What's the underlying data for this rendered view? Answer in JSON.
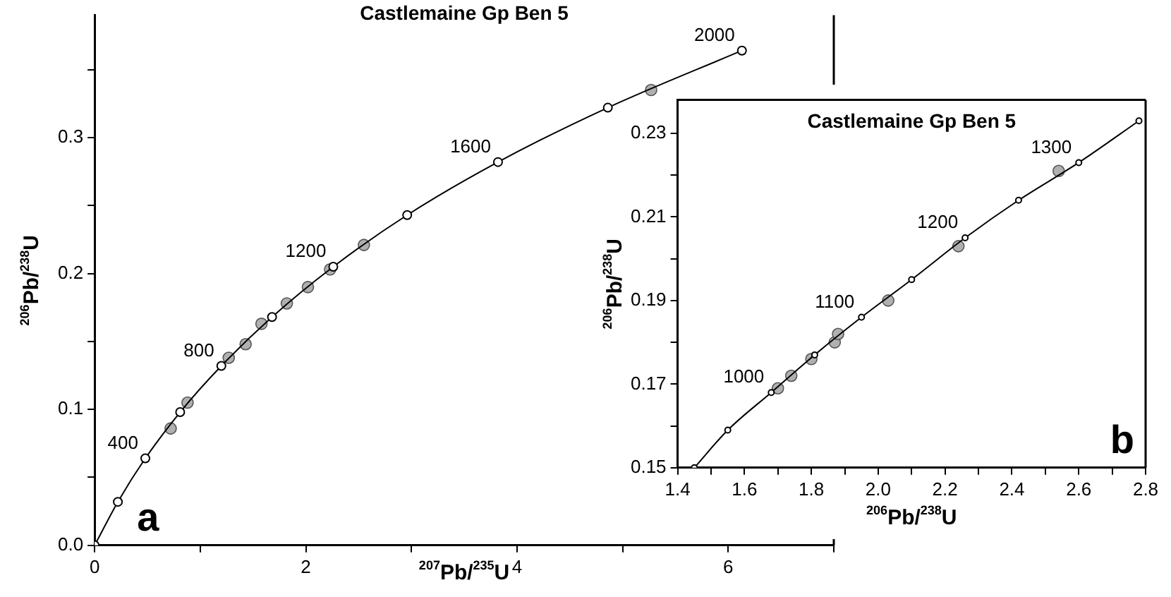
{
  "chart_data": [
    {
      "type": "scatter",
      "title": "Castlemaine Gp Ben 5",
      "xlabel": "$^{207}$Pb/$^{235}$U",
      "ylabel": "$^{206}$Pb/$^{238}$U",
      "xlim": [
        0,
        7
      ],
      "xticks": [
        0,
        {
          "value": 1,
          "label": null
        },
        2,
        {
          "value": 3,
          "label": null
        },
        4,
        {
          "value": 5,
          "label": null
        },
        6,
        {
          "value": 7,
          "label": null
        }
      ],
      "ylim": [
        0,
        0.39
      ],
      "yticks": [
        {
          "value": 0,
          "label": "0.0"
        },
        {
          "value": 0.05,
          "label": null
        },
        0.1,
        {
          "value": 0.15,
          "label": null
        },
        0.2,
        {
          "value": 0.25,
          "label": null
        },
        0.3,
        {
          "value": 0.35,
          "label": null
        }
      ],
      "series": [
        {
          "type": "line",
          "color": "#000000",
          "marker": "circle",
          "x": [
            0,
            0.22,
            0.48,
            0.81,
            1.2,
            1.68,
            2.26,
            2.96,
            3.82,
            4.86,
            6.13
          ],
          "values": [
            0,
            0.032,
            0.064,
            0.098,
            0.132,
            0.168,
            0.205,
            0.243,
            0.282,
            0.322,
            0.364
          ]
        },
        {
          "type": "scatter",
          "color": "#b0b0b0",
          "marker": "circle",
          "x": [
            0.72,
            0.88,
            1.27,
            1.43,
            1.58,
            1.82,
            2.02,
            2.23,
            2.55,
            5.27
          ],
          "values": [
            0.086,
            0.105,
            0.138,
            0.148,
            0.163,
            0.178,
            0.19,
            0.203,
            0.221,
            0.335
          ]
        }
      ],
      "annotations": [
        {
          "text": "400",
          "x": 0.48,
          "y": 0.064
        },
        {
          "text": "800",
          "x": 1.2,
          "y": 0.132
        },
        {
          "text": "1200",
          "x": 2.26,
          "y": 0.205
        },
        {
          "text": "1600",
          "x": 3.82,
          "y": 0.282
        },
        {
          "text": "2000",
          "x": 6.13,
          "y": 0.364
        },
        "a"
      ]
    },
    {
      "type": "scatter",
      "title": "Castlemaine Gp Ben 5",
      "xlabel": "$^{206}$Pb/$^{238}$U",
      "ylabel": "$^{206}$Pb/$^{238}$U",
      "xlim": [
        1.4,
        2.8
      ],
      "xticks": [
        1.4,
        {
          "value": 1.5,
          "label": null
        },
        1.6,
        {
          "value": 1.7,
          "label": null
        },
        1.8,
        {
          "value": 1.9,
          "label": null
        },
        {
          "value": 2,
          "label": "2.0"
        },
        {
          "value": 2.1,
          "label": null
        },
        2.2,
        {
          "value": 2.3,
          "label": null
        },
        2.4,
        {
          "value": 2.5,
          "label": null
        },
        2.6,
        {
          "value": 2.7,
          "label": null
        },
        2.8
      ],
      "ylim": [
        0.15,
        0.238
      ],
      "yticks": [
        0.15,
        {
          "value": 0.16,
          "label": null
        },
        0.17,
        {
          "value": 0.18,
          "label": null
        },
        0.19,
        {
          "value": 0.2,
          "label": null
        },
        0.21,
        {
          "value": 0.22,
          "label": null
        },
        0.23
      ],
      "series": [
        {
          "type": "line",
          "color": "#000000",
          "marker": "circle",
          "x": [
            1.45,
            1.55,
            1.68,
            1.81,
            1.95,
            2.1,
            2.26,
            2.42,
            2.6,
            2.78
          ],
          "values": [
            0.15,
            0.159,
            0.168,
            0.177,
            0.186,
            0.195,
            0.205,
            0.214,
            0.223,
            0.233
          ]
        },
        {
          "type": "scatter",
          "color": "#b0b0b0",
          "marker": "circle",
          "x": [
            1.7,
            1.74,
            1.8,
            1.87,
            1.88,
            2.03,
            2.24,
            2.54
          ],
          "values": [
            0.169,
            0.172,
            0.176,
            0.18,
            0.182,
            0.19,
            0.203,
            0.221
          ]
        }
      ],
      "annotations": [
        {
          "text": "1000",
          "x": 1.68,
          "y": 0.168
        },
        {
          "text": "1100",
          "x": 1.95,
          "y": 0.186
        },
        {
          "text": "1200",
          "x": 2.26,
          "y": 0.205
        },
        {
          "text": "1300",
          "x": 2.6,
          "y": 0.223
        },
        "b"
      ]
    }
  ]
}
